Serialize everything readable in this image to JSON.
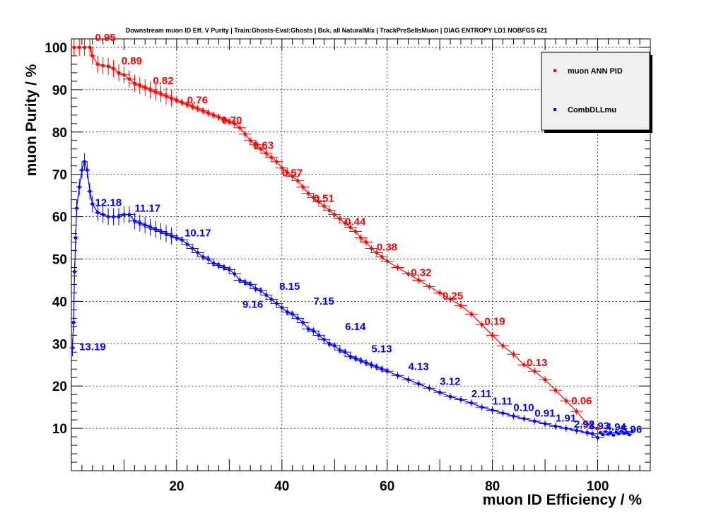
{
  "chart_data": {
    "type": "line",
    "title": "Downstream muon ID Eff. V Purity | Train:Ghosts-Eval:Ghosts | Bck. all NaturalMix | TrackPreSelIsMuon | DIAG ENTROPY LD1 NOBFGS 621",
    "xlabel": "muon ID Efficiency / %",
    "ylabel": "muon Purity / %",
    "xlim": [
      0,
      110
    ],
    "ylim": [
      0,
      102
    ],
    "x_ticks": [
      20,
      40,
      60,
      80,
      100
    ],
    "y_ticks": [
      10,
      20,
      30,
      40,
      50,
      60,
      70,
      80,
      90,
      100
    ],
    "grid": true,
    "legend_position": "top-right",
    "series": [
      {
        "name": "muon ANN PID",
        "color": "#ff0000",
        "points": [
          [
            0.5,
            100
          ],
          [
            1.5,
            100
          ],
          [
            2.5,
            100
          ],
          [
            3.5,
            100
          ],
          [
            4,
            98
          ],
          [
            5,
            96
          ],
          [
            6,
            95.7
          ],
          [
            7,
            95.5
          ],
          [
            8,
            95
          ],
          [
            9,
            94
          ],
          [
            10,
            93.5
          ],
          [
            11,
            92.5
          ],
          [
            12,
            91.5
          ],
          [
            13,
            91
          ],
          [
            14,
            90.5
          ],
          [
            15,
            90
          ],
          [
            16,
            89.5
          ],
          [
            17,
            89
          ],
          [
            18,
            88.5
          ],
          [
            19,
            88
          ],
          [
            20,
            87.5
          ],
          [
            21,
            87
          ],
          [
            22,
            86.5
          ],
          [
            23,
            86
          ],
          [
            24,
            85.5
          ],
          [
            25,
            85
          ],
          [
            26,
            84.5
          ],
          [
            27,
            84
          ],
          [
            28,
            83.5
          ],
          [
            29,
            83
          ],
          [
            30,
            82.5
          ],
          [
            31,
            82
          ],
          [
            32,
            81
          ],
          [
            33,
            79.5
          ],
          [
            34,
            78
          ],
          [
            35,
            77
          ],
          [
            36,
            76
          ],
          [
            37,
            75
          ],
          [
            38,
            74
          ],
          [
            39,
            73
          ],
          [
            40,
            71.5
          ],
          [
            41,
            70.5
          ],
          [
            42,
            69.5
          ],
          [
            43,
            68.5
          ],
          [
            44,
            67
          ],
          [
            45,
            65.5
          ],
          [
            46,
            64.5
          ],
          [
            47,
            63.5
          ],
          [
            48,
            62.5
          ],
          [
            49,
            61.5
          ],
          [
            50,
            60.5
          ],
          [
            51,
            59.5
          ],
          [
            52,
            58.5
          ],
          [
            53,
            57.5
          ],
          [
            54,
            56.5
          ],
          [
            55,
            55
          ],
          [
            56,
            54
          ],
          [
            57,
            52.5
          ],
          [
            58,
            51.5
          ],
          [
            59,
            50.5
          ],
          [
            60,
            49.5
          ],
          [
            62,
            48
          ],
          [
            64,
            46.5
          ],
          [
            66,
            45
          ],
          [
            68,
            43.5
          ],
          [
            70,
            42
          ],
          [
            72,
            40.5
          ],
          [
            74,
            39
          ],
          [
            76,
            37
          ],
          [
            78,
            34.5
          ],
          [
            80,
            32
          ],
          [
            82,
            29.5
          ],
          [
            84,
            27.5
          ],
          [
            86,
            25
          ],
          [
            88,
            23.5
          ],
          [
            90,
            21.5
          ],
          [
            92,
            19
          ],
          [
            94,
            16.5
          ],
          [
            96,
            14
          ],
          [
            98,
            11
          ],
          [
            100,
            10
          ]
        ],
        "annotations": [
          {
            "x": 4.5,
            "y": 101.5,
            "text": "0.95"
          },
          {
            "x": 9.5,
            "y": 96,
            "text": "0.89"
          },
          {
            "x": 15.5,
            "y": 91.3,
            "text": "0.82"
          },
          {
            "x": 22,
            "y": 86.7,
            "text": "0.76"
          },
          {
            "x": 28.5,
            "y": 82,
            "text": "0.70"
          },
          {
            "x": 34.5,
            "y": 76,
            "text": "0.63"
          },
          {
            "x": 40,
            "y": 69.5,
            "text": "0.57"
          },
          {
            "x": 46,
            "y": 63.5,
            "text": "0.51"
          },
          {
            "x": 52,
            "y": 58,
            "text": "0.44"
          },
          {
            "x": 58,
            "y": 52,
            "text": "0.38"
          },
          {
            "x": 64.5,
            "y": 46,
            "text": "0.32"
          },
          {
            "x": 70.5,
            "y": 40.5,
            "text": "0.25"
          },
          {
            "x": 78.5,
            "y": 34.5,
            "text": "0.19"
          },
          {
            "x": 86.5,
            "y": 24.7,
            "text": "0.13"
          },
          {
            "x": 95,
            "y": 15.7,
            "text": "0.06"
          }
        ]
      },
      {
        "name": "CombDLLmu",
        "color": "#0000ff",
        "points": [
          [
            0.2,
            29
          ],
          [
            0.4,
            35
          ],
          [
            0.6,
            47
          ],
          [
            0.8,
            55
          ],
          [
            1,
            62
          ],
          [
            1.5,
            67
          ],
          [
            2,
            71
          ],
          [
            2.5,
            73
          ],
          [
            3,
            71
          ],
          [
            3.5,
            66
          ],
          [
            4,
            63
          ],
          [
            5,
            61
          ],
          [
            6,
            60.5
          ],
          [
            7,
            60
          ],
          [
            8,
            60
          ],
          [
            9,
            60
          ],
          [
            10,
            60.5
          ],
          [
            11,
            60.5
          ],
          [
            12,
            59
          ],
          [
            13,
            58.5
          ],
          [
            14,
            58
          ],
          [
            15,
            57.5
          ],
          [
            16,
            57
          ],
          [
            17,
            56.5
          ],
          [
            18,
            56
          ],
          [
            19,
            55.5
          ],
          [
            20,
            55
          ],
          [
            21,
            54.5
          ],
          [
            22,
            53.5
          ],
          [
            23,
            52.5
          ],
          [
            24,
            51.5
          ],
          [
            25,
            50.5
          ],
          [
            26,
            50
          ],
          [
            27,
            49
          ],
          [
            28,
            48.5
          ],
          [
            29,
            48
          ],
          [
            30,
            47.5
          ],
          [
            31,
            46.5
          ],
          [
            32,
            45
          ],
          [
            33,
            44.5
          ],
          [
            34,
            44
          ],
          [
            35,
            43
          ],
          [
            36,
            42.5
          ],
          [
            37,
            41.5
          ],
          [
            38,
            40.5
          ],
          [
            39,
            39.5
          ],
          [
            40,
            38.5
          ],
          [
            41,
            37.5
          ],
          [
            42,
            37
          ],
          [
            43,
            36
          ],
          [
            44,
            35
          ],
          [
            45,
            33.5
          ],
          [
            46,
            33
          ],
          [
            47,
            32
          ],
          [
            48,
            31
          ],
          [
            49,
            30
          ],
          [
            50,
            29.5
          ],
          [
            51,
            28.5
          ],
          [
            52,
            28
          ],
          [
            53,
            27
          ],
          [
            54,
            26.5
          ],
          [
            55,
            26
          ],
          [
            56,
            25.5
          ],
          [
            57,
            25
          ],
          [
            58,
            24.5
          ],
          [
            59,
            24
          ],
          [
            60,
            23.5
          ],
          [
            62,
            22.5
          ],
          [
            64,
            21.5
          ],
          [
            66,
            20.5
          ],
          [
            68,
            19.5
          ],
          [
            70,
            18.5
          ],
          [
            72,
            17.5
          ],
          [
            74,
            16.8
          ],
          [
            76,
            16
          ],
          [
            78,
            15
          ],
          [
            80,
            14.3
          ],
          [
            82,
            13.6
          ],
          [
            84,
            12.9
          ],
          [
            86,
            12.3
          ],
          [
            88,
            11.7
          ],
          [
            90,
            11.1
          ],
          [
            92,
            10.5
          ],
          [
            94,
            10
          ],
          [
            96,
            9.5
          ],
          [
            98,
            9
          ],
          [
            99,
            8.7
          ],
          [
            100,
            7.8
          ]
        ],
        "annotations": [
          {
            "x": 1.5,
            "y": 28.5,
            "text": "13.19"
          },
          {
            "x": 4.5,
            "y": 62.5,
            "text": "12.18"
          },
          {
            "x": 12,
            "y": 61.2,
            "text": "11.17"
          },
          {
            "x": 21.5,
            "y": 55.3,
            "text": "10.17"
          },
          {
            "x": 32.5,
            "y": 38.5,
            "text": "9.16",
            "y_fix": 38.5
          },
          {
            "x": 39.5,
            "y": 42.7,
            "text": "8.15"
          },
          {
            "x": 46,
            "y": 39.2,
            "text": "7.15"
          },
          {
            "x": 52,
            "y": 33.2,
            "text": "6.14"
          },
          {
            "x": 57,
            "y": 28,
            "text": "5.13"
          },
          {
            "x": 64,
            "y": 23.8,
            "text": "4.13"
          },
          {
            "x": 70,
            "y": 20.3,
            "text": "3.12"
          },
          {
            "x": 76,
            "y": 17.4,
            "text": "2.11"
          },
          {
            "x": 80,
            "y": 15.6,
            "text": "1.11"
          },
          {
            "x": 84,
            "y": 14.1,
            "text": "0.10"
          },
          {
            "x": 88,
            "y": 12.8,
            "text": "0.91"
          },
          {
            "x": 92,
            "y": 11.6,
            "text": "1.91"
          },
          {
            "x": 95.5,
            "y": 10.2,
            "text": "2.92"
          },
          {
            "x": 98.3,
            "y": 9.8,
            "text": "3.93"
          },
          {
            "x": 101.5,
            "y": 9.5,
            "text": "4.94"
          },
          {
            "x": 104.5,
            "y": 8.9,
            "text": "5.96"
          }
        ],
        "tail_points": [
          [
            100.5,
            9
          ],
          [
            101,
            8.5
          ],
          [
            101.5,
            9.2
          ],
          [
            102,
            8.6
          ],
          [
            102.5,
            9
          ],
          [
            103,
            8.4
          ],
          [
            103.5,
            9.1
          ],
          [
            104,
            8.7
          ],
          [
            104.5,
            9.3
          ],
          [
            105,
            8.8
          ],
          [
            105.5,
            9
          ],
          [
            106,
            8.5
          ],
          [
            106.5,
            9.2
          ]
        ]
      }
    ]
  }
}
